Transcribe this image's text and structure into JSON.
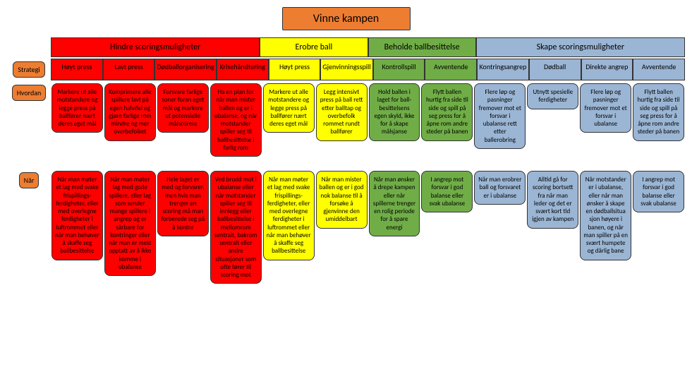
{
  "title": "Vinne kampen",
  "side_labels": {
    "strategi": "Strategi",
    "hvordan": "Hvordan",
    "nar": "Når"
  },
  "colors": {
    "red": "#ff0000",
    "yellow": "#ffff00",
    "green": "#70ad47",
    "blue": "#9bb5d4",
    "orange": "#ed7d31",
    "border": "#333333",
    "text": "#000000"
  },
  "typography": {
    "title_fontsize": 16,
    "group_fontsize": 12,
    "col_fontsize": 10,
    "cell_fontsize": 9,
    "side_fontsize": 10
  },
  "groups": [
    {
      "label": "Hindre scoringsmuligheter",
      "color": "red",
      "span": 4
    },
    {
      "label": "Erobre ball",
      "color": "yellow",
      "span": 2
    },
    {
      "label": "Beholde ballbesittelse",
      "color": "green",
      "span": 2
    },
    {
      "label": "Skape scoringsmuligheter",
      "color": "blue",
      "span": 4
    }
  ],
  "columns": [
    {
      "label": "Høyt press",
      "color": "red",
      "hvordan": "Markere ut alle motstandere og legge press på ballfører nært deres eget mål",
      "nar": "Når man møter et lag med svake frispillings-ferdigheter, eller med overlegne ferdigheter i luftrommet eller når man behøver å skaffe seg ballbesittelse"
    },
    {
      "label": "Lavt press",
      "color": "red",
      "hvordan": "Komprimere alle spillere lavt på egen halvdel og gjøre farlige rom mindre og mer overbefolket",
      "nar": "Når man møter lag med gode spillere, eller lag som sender mange spillere i angrep og er sårbare for kontringer eller når man er mest opptatt av å ikke komme i ubalanse"
    },
    {
      "label": "Dødballorganisering",
      "color": "red",
      "hvordan": "Forsvare farlige soner foran eget mål og markere ut potensielle målscorere",
      "nar": "Hele laget er med og forvarer, men hvis man trenger en scoring må man forberede seg på å kontre"
    },
    {
      "label": "Krisehåndtering",
      "color": "red",
      "hvordan": "Ha en plan for når man mister ballen og er i ubalanse, og når motstander spiller seg til ballbesittelse i farlig rom",
      "nar": "Ved brudd mot i ubalanse eller når motstander spiller seg til innlegg eller ballbesittelse i mellomrom sentralt, bakrom sentralt eller andre situasjoner som ofte fører til scoring mot"
    },
    {
      "label": "Høyt press",
      "color": "yellow",
      "hvordan": "Markere ut alle motstandere og legge press på ballfører nært deres eget mål",
      "nar": "Når man møter et lag med svake frispillings-ferdigheter, eller med overlegne ferdigheter i luftrommet eller når man behøver å skaffe seg ballbesittelse"
    },
    {
      "label": "Gjenvinningsspill",
      "color": "yellow",
      "hvordan": "Legg intensivt press på ball rett etter balltap og overbefolk rommet rundt ballfører",
      "nar": "Når man mister ballen og er i god nok balanse til å forsøke å gjenvinne den umiddelbart"
    },
    {
      "label": "Kontrollspill",
      "color": "green",
      "hvordan": "Hold ballen i laget for ball-besittelsens egen skyld, ikke for å skape målsjanse",
      "nar": "Når man ønsker å drepe kampen eller når spillerne trenger en rolig periode for å spare energi"
    },
    {
      "label": "Avventende",
      "color": "green",
      "hvordan": "Flytt ballen hurtig fra side til side og spill på seg press for å åpne rom andre steder på banen",
      "nar": "I angrep mot forsvar i god balanse eller svak ubalanse"
    },
    {
      "label": "Kontringsangrep",
      "color": "blue",
      "hvordan": "Flere løp og pasninger fremover mot et forsvar i ubalanse rett etter ballerobring",
      "nar": "Når man erobrer ball og forsvaret er i ubalanse"
    },
    {
      "label": "Dødball",
      "color": "blue",
      "hvordan": "Utnytt spesielle ferdigheter",
      "nar": "Alltid gå for scoring bortsett fra når man leder og det er svært kort tid igjen av kampen"
    },
    {
      "label": "Direkte angrep",
      "color": "blue",
      "hvordan": "Flere løp og pasninger fremover mot et forsvar i ubalanse",
      "nar": "Når motstander er i ubalanse, eller når man ønsker å skape en dødballsitua sjon høyere i banen, og når man spiller på en svært humpete og dårlig bane"
    },
    {
      "label": "Avventende",
      "color": "blue",
      "hvordan": "Flytt ballen hurtig fra side til side og spill på seg press for å åpne rom andre steder på banen",
      "nar": "I angrep mot forsvar i god balanse eller svak ubalanse"
    }
  ]
}
